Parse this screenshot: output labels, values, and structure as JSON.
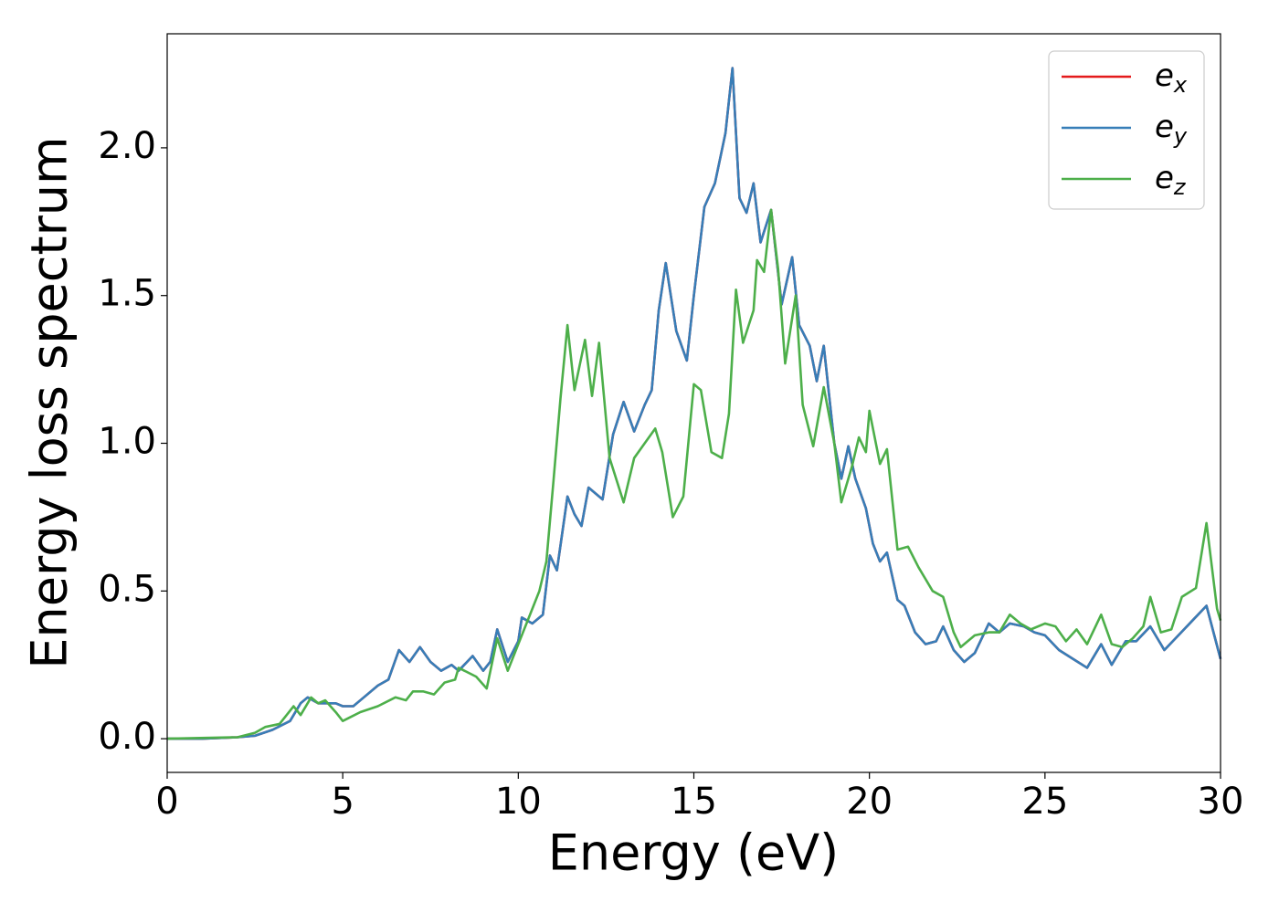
{
  "chart_data": {
    "type": "line",
    "xlabel": "Energy (eV)",
    "ylabel": "Energy loss spectrum",
    "xlim": [
      0,
      30
    ],
    "xticks": [
      0,
      5,
      10,
      15,
      20,
      25,
      30
    ],
    "ylim": [
      -0.114,
      2.386
    ],
    "yticks": [
      {
        "value": 0,
        "label": "0.0"
      },
      0.5,
      {
        "value": 1,
        "label": "1.0"
      },
      1.5,
      {
        "value": 2,
        "label": "2.0"
      }
    ],
    "legend": "upper right",
    "series": [
      {
        "name": "ex",
        "color": "#e41a1c",
        "x": [
          0,
          1,
          2,
          2.5,
          3,
          3.5,
          3.8,
          4,
          4.3,
          4.8,
          5,
          5.3,
          5.6,
          6,
          6.3,
          6.6,
          6.9,
          7.2,
          7.5,
          7.8,
          8.1,
          8.3,
          8.7,
          9,
          9.2,
          9.4,
          9.7,
          10,
          10.1,
          10.4,
          10.7,
          10.9,
          11.1,
          11.4,
          11.6,
          11.8,
          12,
          12.2,
          12.4,
          12.7,
          13,
          13.3,
          13.6,
          13.8,
          14,
          14.2,
          14.5,
          14.8,
          15,
          15.3,
          15.6,
          15.9,
          16.1,
          16.3,
          16.5,
          16.7,
          16.9,
          17.2,
          17.5,
          17.8,
          18,
          18.3,
          18.5,
          18.7,
          19,
          19.2,
          19.4,
          19.6,
          19.9,
          20.1,
          20.3,
          20.5,
          20.8,
          21,
          21.3,
          21.6,
          21.9,
          22.1,
          22.4,
          22.7,
          23,
          23.4,
          23.7,
          24,
          24.4,
          24.7,
          25,
          25.4,
          25.8,
          26.2,
          26.6,
          26.9,
          27.3,
          27.6,
          28,
          28.4,
          28.8,
          29.2,
          29.6,
          30
        ],
        "values": [
          0,
          0,
          0.005,
          0.01,
          0.03,
          0.06,
          0.12,
          0.14,
          0.12,
          0.12,
          0.11,
          0.11,
          0.14,
          0.18,
          0.2,
          0.3,
          0.26,
          0.31,
          0.26,
          0.23,
          0.25,
          0.23,
          0.28,
          0.23,
          0.26,
          0.37,
          0.26,
          0.33,
          0.41,
          0.39,
          0.42,
          0.62,
          0.57,
          0.82,
          0.76,
          0.72,
          0.85,
          0.83,
          0.81,
          1.03,
          1.14,
          1.04,
          1.13,
          1.18,
          1.45,
          1.61,
          1.38,
          1.28,
          1.5,
          1.8,
          1.88,
          2.05,
          2.27,
          1.83,
          1.78,
          1.88,
          1.68,
          1.79,
          1.47,
          1.63,
          1.4,
          1.33,
          1.21,
          1.33,
          1.0,
          0.88,
          0.99,
          0.88,
          0.78,
          0.66,
          0.6,
          0.63,
          0.47,
          0.45,
          0.36,
          0.32,
          0.33,
          0.38,
          0.3,
          0.26,
          0.29,
          0.39,
          0.36,
          0.39,
          0.38,
          0.36,
          0.35,
          0.3,
          0.27,
          0.24,
          0.32,
          0.25,
          0.33,
          0.33,
          0.38,
          0.3,
          0.35,
          0.4,
          0.45,
          0.27
        ]
      },
      {
        "name": "ey",
        "color": "#377eb8",
        "x": [
          0,
          1,
          2,
          2.5,
          3,
          3.5,
          3.8,
          4,
          4.3,
          4.8,
          5,
          5.3,
          5.6,
          6,
          6.3,
          6.6,
          6.9,
          7.2,
          7.5,
          7.8,
          8.1,
          8.3,
          8.7,
          9,
          9.2,
          9.4,
          9.7,
          10,
          10.1,
          10.4,
          10.7,
          10.9,
          11.1,
          11.4,
          11.6,
          11.8,
          12,
          12.2,
          12.4,
          12.7,
          13,
          13.3,
          13.6,
          13.8,
          14,
          14.2,
          14.5,
          14.8,
          15,
          15.3,
          15.6,
          15.9,
          16.1,
          16.3,
          16.5,
          16.7,
          16.9,
          17.2,
          17.5,
          17.8,
          18,
          18.3,
          18.5,
          18.7,
          19,
          19.2,
          19.4,
          19.6,
          19.9,
          20.1,
          20.3,
          20.5,
          20.8,
          21,
          21.3,
          21.6,
          21.9,
          22.1,
          22.4,
          22.7,
          23,
          23.4,
          23.7,
          24,
          24.4,
          24.7,
          25,
          25.4,
          25.8,
          26.2,
          26.6,
          26.9,
          27.3,
          27.6,
          28,
          28.4,
          28.8,
          29.2,
          29.6,
          30
        ],
        "values": [
          0,
          0,
          0.005,
          0.01,
          0.03,
          0.06,
          0.12,
          0.14,
          0.12,
          0.12,
          0.11,
          0.11,
          0.14,
          0.18,
          0.2,
          0.3,
          0.26,
          0.31,
          0.26,
          0.23,
          0.25,
          0.23,
          0.28,
          0.23,
          0.26,
          0.37,
          0.26,
          0.33,
          0.41,
          0.39,
          0.42,
          0.62,
          0.57,
          0.82,
          0.76,
          0.72,
          0.85,
          0.83,
          0.81,
          1.03,
          1.14,
          1.04,
          1.13,
          1.18,
          1.45,
          1.61,
          1.38,
          1.28,
          1.5,
          1.8,
          1.88,
          2.05,
          2.27,
          1.83,
          1.78,
          1.88,
          1.68,
          1.79,
          1.47,
          1.63,
          1.4,
          1.33,
          1.21,
          1.33,
          1.0,
          0.88,
          0.99,
          0.88,
          0.78,
          0.66,
          0.6,
          0.63,
          0.47,
          0.45,
          0.36,
          0.32,
          0.33,
          0.38,
          0.3,
          0.26,
          0.29,
          0.39,
          0.36,
          0.39,
          0.38,
          0.36,
          0.35,
          0.3,
          0.27,
          0.24,
          0.32,
          0.25,
          0.33,
          0.33,
          0.38,
          0.3,
          0.35,
          0.4,
          0.45,
          0.27
        ]
      },
      {
        "name": "ez",
        "color": "#4daf4a",
        "x": [
          0,
          2,
          2.5,
          2.8,
          3.2,
          3.6,
          3.8,
          4.1,
          4.3,
          4.5,
          4.8,
          5,
          5.5,
          6,
          6.5,
          6.8,
          7,
          7.3,
          7.6,
          7.9,
          8.2,
          8.3,
          8.8,
          9.1,
          9.4,
          9.7,
          10,
          10.4,
          10.6,
          10.8,
          11,
          11.2,
          11.4,
          11.6,
          11.9,
          12.1,
          12.3,
          12.6,
          13,
          13.3,
          13.6,
          13.9,
          14.1,
          14.4,
          14.7,
          15,
          15.2,
          15.5,
          15.8,
          16,
          16.2,
          16.4,
          16.7,
          16.8,
          17,
          17.2,
          17.4,
          17.6,
          17.9,
          18.1,
          18.4,
          18.7,
          19,
          19.2,
          19.5,
          19.7,
          19.9,
          20,
          20.3,
          20.5,
          20.8,
          21.1,
          21.4,
          21.8,
          22.1,
          22.4,
          22.6,
          23,
          23.4,
          23.7,
          24,
          24.3,
          24.6,
          25,
          25.3,
          25.6,
          25.9,
          26.2,
          26.6,
          26.9,
          27.2,
          27.5,
          27.8,
          28,
          28.3,
          28.6,
          28.9,
          29.3,
          29.6,
          29.9,
          30
        ],
        "values": [
          0,
          0.005,
          0.02,
          0.04,
          0.05,
          0.11,
          0.08,
          0.14,
          0.12,
          0.13,
          0.09,
          0.06,
          0.09,
          0.11,
          0.14,
          0.13,
          0.16,
          0.16,
          0.15,
          0.19,
          0.2,
          0.24,
          0.21,
          0.17,
          0.34,
          0.23,
          0.32,
          0.44,
          0.5,
          0.6,
          0.87,
          1.15,
          1.4,
          1.18,
          1.35,
          1.16,
          1.34,
          0.95,
          0.8,
          0.95,
          1.0,
          1.05,
          0.97,
          0.75,
          0.82,
          1.2,
          1.18,
          0.97,
          0.95,
          1.1,
          1.52,
          1.34,
          1.45,
          1.62,
          1.58,
          1.79,
          1.59,
          1.27,
          1.5,
          1.13,
          0.99,
          1.19,
          1.0,
          0.8,
          0.92,
          1.02,
          0.97,
          1.11,
          0.93,
          0.98,
          0.64,
          0.65,
          0.58,
          0.5,
          0.48,
          0.36,
          0.31,
          0.35,
          0.36,
          0.36,
          0.42,
          0.39,
          0.37,
          0.39,
          0.38,
          0.33,
          0.37,
          0.32,
          0.42,
          0.32,
          0.31,
          0.34,
          0.38,
          0.48,
          0.36,
          0.37,
          0.48,
          0.51,
          0.73,
          0.44,
          0.4
        ]
      }
    ]
  }
}
